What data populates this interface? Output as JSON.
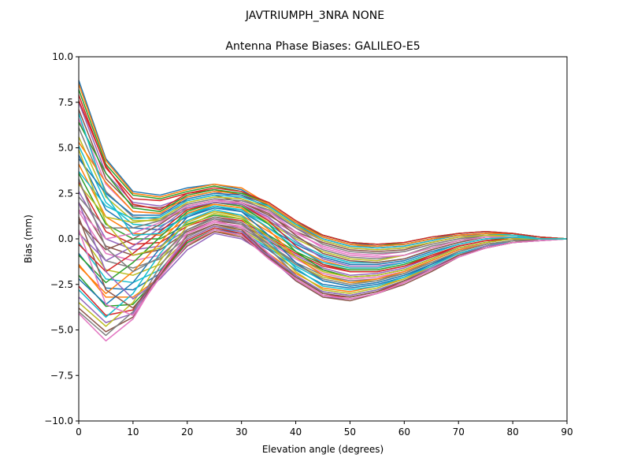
{
  "chart_data": {
    "type": "line",
    "suptitle": "JAVTRIUMPH_3NRA NONE",
    "title": "Antenna Phase Biases: GALILEO-E5",
    "xlabel": "Elevation angle (degrees)",
    "ylabel": "Bias (mm)",
    "xlim": [
      0,
      90
    ],
    "ylim": [
      -10,
      10
    ],
    "xticks": [
      0,
      10,
      20,
      30,
      40,
      50,
      60,
      70,
      80,
      90
    ],
    "xtick_labels": [
      "0",
      "10",
      "20",
      "30",
      "40",
      "50",
      "60",
      "70",
      "80",
      "90"
    ],
    "yticks": [
      -10,
      -7.5,
      -5,
      -2.5,
      0,
      2.5,
      5,
      7.5,
      10
    ],
    "ytick_labels": [
      "−10.0",
      "−7.5",
      "−5.0",
      "−2.5",
      "0.0",
      "2.5",
      "5.0",
      "7.5",
      "10.0"
    ],
    "grid": false,
    "legend": "none",
    "palette": [
      "#1f77b4",
      "#ff7f0e",
      "#2ca02c",
      "#d62728",
      "#9467bd",
      "#8c564b",
      "#e377c2",
      "#7f7f7f",
      "#bcbd22",
      "#17becf"
    ],
    "x": [
      0,
      5,
      10,
      15,
      20,
      25,
      30,
      35,
      40,
      45,
      50,
      55,
      60,
      65,
      70,
      75,
      80,
      85,
      90
    ],
    "series": [
      {
        "values": [
          8.7,
          4.4,
          2.6,
          2.4,
          2.8,
          3.0,
          2.7,
          1.8,
          0.9,
          0.2,
          -0.2,
          -0.4,
          -0.3,
          0.0,
          0.3,
          0.4,
          0.3,
          0.1,
          0.0
        ]
      },
      {
        "values": [
          8.5,
          4.3,
          2.5,
          2.3,
          2.7,
          3.0,
          2.8,
          1.9,
          0.8,
          0.1,
          -0.3,
          -0.5,
          -0.4,
          -0.1,
          0.2,
          0.3,
          0.3,
          0.1,
          0.0
        ]
      },
      {
        "values": [
          8.2,
          4.1,
          2.4,
          2.2,
          2.6,
          2.9,
          2.6,
          1.8,
          0.8,
          0.2,
          -0.2,
          -0.3,
          -0.3,
          0.0,
          0.2,
          0.3,
          0.2,
          0.1,
          0.0
        ]
      },
      {
        "values": [
          7.9,
          3.9,
          2.2,
          2.1,
          2.5,
          2.7,
          2.4,
          1.7,
          0.7,
          0.0,
          -0.4,
          -0.5,
          -0.4,
          -0.1,
          0.2,
          0.3,
          0.2,
          0.1,
          0.0
        ]
      },
      {
        "values": [
          7.5,
          3.6,
          2.0,
          1.8,
          2.3,
          2.6,
          2.2,
          1.5,
          0.6,
          -0.1,
          -0.5,
          -0.6,
          -0.5,
          -0.2,
          0.1,
          0.3,
          0.2,
          0.1,
          0.0
        ]
      },
      {
        "values": [
          7.1,
          3.3,
          1.8,
          1.7,
          2.1,
          2.4,
          2.0,
          1.3,
          0.4,
          -0.2,
          -0.6,
          -0.7,
          -0.6,
          -0.2,
          0.1,
          0.2,
          0.2,
          0.1,
          0.0
        ]
      },
      {
        "values": [
          6.6,
          3.0,
          1.5,
          1.4,
          1.9,
          2.2,
          1.9,
          1.1,
          0.3,
          -0.4,
          -0.8,
          -0.9,
          -0.7,
          -0.3,
          0.0,
          0.2,
          0.2,
          0.1,
          0.0
        ]
      },
      {
        "values": [
          6.1,
          2.6,
          1.2,
          1.1,
          1.7,
          2.0,
          1.8,
          1.0,
          0.1,
          -0.6,
          -1.0,
          -1.1,
          -0.9,
          -0.4,
          -0.1,
          0.2,
          0.2,
          0.1,
          0.0
        ]
      },
      {
        "values": [
          5.6,
          2.3,
          1.0,
          1.0,
          1.6,
          1.9,
          1.7,
          0.9,
          0.0,
          -0.7,
          -1.1,
          -1.2,
          -0.9,
          -0.5,
          -0.1,
          0.1,
          0.2,
          0.1,
          0.0
        ]
      },
      {
        "values": [
          5.1,
          2.0,
          0.8,
          0.7,
          1.4,
          1.8,
          1.6,
          0.8,
          -0.2,
          -0.9,
          -1.3,
          -1.3,
          -1.1,
          -0.6,
          -0.2,
          0.1,
          0.1,
          0.1,
          0.0
        ]
      },
      {
        "values": [
          4.6,
          1.6,
          0.6,
          0.5,
          1.2,
          1.7,
          1.5,
          0.6,
          -0.3,
          -1.0,
          -1.4,
          -1.4,
          -1.2,
          -0.7,
          -0.3,
          0.0,
          0.1,
          0.0,
          0.0
        ]
      },
      {
        "values": [
          4.1,
          1.2,
          0.3,
          0.2,
          1.0,
          1.5,
          1.3,
          0.4,
          -0.5,
          -1.2,
          -1.6,
          -1.6,
          -1.3,
          -0.8,
          -0.3,
          0.0,
          0.1,
          0.0,
          0.0
        ]
      },
      {
        "values": [
          3.6,
          0.8,
          0.0,
          0.0,
          0.8,
          1.3,
          1.1,
          0.2,
          -0.7,
          -1.4,
          -1.7,
          -1.7,
          -1.4,
          -0.9,
          -0.4,
          -0.1,
          0.1,
          0.0,
          0.0
        ]
      },
      {
        "values": [
          3.1,
          0.4,
          -0.3,
          -0.2,
          0.7,
          1.2,
          1.0,
          0.1,
          -0.8,
          -1.5,
          -1.8,
          -1.8,
          -1.5,
          -0.9,
          -0.4,
          -0.1,
          0.0,
          0.0,
          0.0
        ]
      },
      {
        "values": [
          2.6,
          0.0,
          -0.6,
          -0.4,
          0.5,
          1.1,
          0.9,
          0.0,
          -0.9,
          -1.6,
          -2.0,
          -1.9,
          -1.6,
          -1.0,
          -0.5,
          -0.2,
          0.0,
          0.0,
          0.0
        ]
      },
      {
        "values": [
          2.0,
          -0.4,
          -0.9,
          -0.6,
          0.4,
          1.0,
          0.8,
          -0.1,
          -1.0,
          -1.7,
          -2.1,
          -2.0,
          -1.7,
          -1.1,
          -0.5,
          -0.2,
          0.0,
          0.0,
          0.0
        ]
      },
      {
        "values": [
          1.5,
          -0.8,
          -1.2,
          -0.9,
          0.3,
          0.9,
          0.7,
          -0.2,
          -1.1,
          -1.9,
          -2.2,
          -2.1,
          -1.8,
          -1.2,
          -0.6,
          -0.2,
          0.0,
          0.0,
          0.0
        ]
      },
      {
        "values": [
          1.0,
          -1.2,
          -1.6,
          -1.1,
          0.1,
          0.8,
          0.6,
          -0.3,
          -1.3,
          -2.0,
          -2.3,
          -2.2,
          -1.9,
          -1.2,
          -0.6,
          -0.3,
          -0.1,
          0.0,
          0.0
        ]
      },
      {
        "values": [
          0.4,
          -1.7,
          -2.0,
          -1.4,
          0.0,
          0.7,
          0.5,
          -0.4,
          -1.4,
          -2.1,
          -2.4,
          -2.3,
          -1.9,
          -1.3,
          -0.7,
          -0.3,
          -0.1,
          0.0,
          0.0
        ]
      },
      {
        "values": [
          -0.2,
          -2.2,
          -2.4,
          -1.7,
          -0.1,
          0.6,
          0.4,
          -0.5,
          -1.5,
          -2.3,
          -2.6,
          -2.4,
          -2.0,
          -1.4,
          -0.7,
          -0.3,
          -0.1,
          0.0,
          0.0
        ]
      },
      {
        "values": [
          -0.8,
          -2.7,
          -2.8,
          -1.9,
          -0.2,
          0.5,
          0.3,
          -0.6,
          -1.7,
          -2.5,
          -2.7,
          -2.5,
          -2.1,
          -1.4,
          -0.8,
          -0.4,
          -0.1,
          0.0,
          0.0
        ]
      },
      {
        "values": [
          -1.4,
          -3.2,
          -3.2,
          -2.1,
          -0.3,
          0.4,
          0.2,
          -0.8,
          -1.9,
          -2.7,
          -2.9,
          -2.6,
          -2.2,
          -1.5,
          -0.8,
          -0.4,
          -0.1,
          0.0,
          0.0
        ]
      },
      {
        "values": [
          -2.0,
          -3.7,
          -3.6,
          -2.0,
          -0.2,
          0.5,
          0.2,
          -0.9,
          -2.1,
          -2.9,
          -3.1,
          -2.8,
          -2.3,
          -1.6,
          -0.9,
          -0.4,
          -0.2,
          0.0,
          0.0
        ]
      },
      {
        "values": [
          -2.6,
          -4.2,
          -3.9,
          -1.9,
          -0.1,
          0.6,
          0.3,
          -1.0,
          -2.2,
          -3.1,
          -3.2,
          -2.9,
          -2.4,
          -1.7,
          -0.9,
          -0.5,
          -0.2,
          0.0,
          0.0
        ]
      },
      {
        "values": [
          -3.2,
          -4.6,
          -4.1,
          -1.8,
          0.0,
          0.7,
          0.4,
          -1.0,
          -2.3,
          -3.2,
          -3.3,
          -3.0,
          -2.4,
          -1.7,
          -1.0,
          -0.5,
          -0.2,
          -0.1,
          0.0
        ]
      },
      {
        "values": [
          -3.8,
          -5.1,
          -4.3,
          -1.8,
          0.2,
          0.8,
          0.5,
          -0.9,
          -2.3,
          -3.2,
          -3.4,
          -3.0,
          -2.5,
          -1.8,
          -1.0,
          -0.5,
          -0.2,
          -0.1,
          0.0
        ]
      },
      {
        "values": [
          -4.1,
          -5.6,
          -4.4,
          -1.9,
          0.3,
          1.0,
          0.6,
          -0.8,
          -2.2,
          -3.1,
          -3.3,
          -3.0,
          -2.4,
          -1.7,
          -1.0,
          -0.5,
          -0.2,
          -0.1,
          0.0
        ]
      },
      {
        "values": [
          -4.0,
          -5.3,
          -4.0,
          -1.5,
          0.5,
          1.2,
          0.9,
          -0.5,
          -2.0,
          -3.0,
          -3.2,
          -2.9,
          -2.3,
          -1.7,
          -0.9,
          -0.5,
          -0.2,
          -0.1,
          0.0
        ]
      },
      {
        "values": [
          -3.5,
          -4.8,
          -3.5,
          -1.2,
          0.7,
          1.4,
          1.1,
          -0.3,
          -1.8,
          -2.8,
          -3.0,
          -2.7,
          -2.2,
          -1.6,
          -0.9,
          -0.4,
          -0.2,
          0.0,
          0.0
        ]
      },
      {
        "values": [
          -2.8,
          -4.3,
          -3.0,
          -0.8,
          1.0,
          1.6,
          1.3,
          -0.1,
          -1.6,
          -2.6,
          -2.8,
          -2.6,
          -2.1,
          -1.5,
          -0.8,
          -0.4,
          -0.1,
          0.0,
          0.0
        ]
      },
      {
        "values": [
          -2.2,
          -3.6,
          -2.4,
          -0.5,
          1.2,
          1.8,
          1.5,
          0.2,
          -1.3,
          -2.3,
          -2.6,
          -2.4,
          -2.0,
          -1.4,
          -0.7,
          -0.3,
          -0.1,
          0.0,
          0.0
        ]
      },
      {
        "values": [
          -1.5,
          -3.0,
          -1.8,
          -0.2,
          1.4,
          1.9,
          1.7,
          0.5,
          -1.0,
          -2.0,
          -2.4,
          -2.2,
          -1.8,
          -1.2,
          -0.6,
          -0.3,
          -0.1,
          0.0,
          0.0
        ]
      },
      {
        "values": [
          -0.9,
          -2.4,
          -1.3,
          0.1,
          1.5,
          2.0,
          1.8,
          0.8,
          -0.7,
          -1.7,
          -2.1,
          -2.0,
          -1.7,
          -1.1,
          -0.5,
          -0.2,
          0.0,
          0.0,
          0.0
        ]
      },
      {
        "values": [
          -0.3,
          -1.8,
          -0.8,
          0.4,
          1.6,
          2.0,
          1.9,
          1.0,
          -0.4,
          -1.4,
          -1.8,
          -1.8,
          -1.5,
          -1.0,
          -0.4,
          -0.1,
          0.0,
          0.0,
          0.0
        ]
      },
      {
        "values": [
          0.3,
          -1.2,
          -0.4,
          0.6,
          1.7,
          2.0,
          1.9,
          1.2,
          -0.1,
          -1.1,
          -1.5,
          -1.5,
          -1.3,
          -0.8,
          -0.3,
          0.0,
          0.1,
          0.0,
          0.0
        ]
      },
      {
        "values": [
          0.9,
          -0.6,
          0.0,
          0.8,
          1.8,
          2.1,
          2.0,
          1.4,
          0.2,
          -0.8,
          -1.2,
          -1.3,
          -1.1,
          -0.6,
          -0.2,
          0.1,
          0.1,
          0.0,
          0.0
        ]
      },
      {
        "values": [
          1.6,
          0.0,
          0.3,
          0.9,
          1.8,
          2.1,
          2.0,
          1.5,
          0.4,
          -0.5,
          -0.9,
          -1.0,
          -0.9,
          -0.5,
          -0.1,
          0.1,
          0.1,
          0.0,
          0.0
        ]
      },
      {
        "values": [
          2.3,
          0.6,
          0.6,
          1.0,
          1.9,
          2.2,
          2.1,
          1.6,
          0.6,
          -0.3,
          -0.7,
          -0.8,
          -0.7,
          -0.3,
          0.0,
          0.2,
          0.2,
          0.1,
          0.0
        ]
      },
      {
        "values": [
          3.0,
          1.2,
          0.9,
          1.1,
          2.0,
          2.3,
          2.2,
          1.7,
          0.7,
          -0.1,
          -0.5,
          -0.6,
          -0.5,
          -0.2,
          0.1,
          0.2,
          0.2,
          0.1,
          0.0
        ]
      },
      {
        "values": [
          3.7,
          1.8,
          1.1,
          1.2,
          2.1,
          2.4,
          2.3,
          1.8,
          0.8,
          0.0,
          -0.4,
          -0.5,
          -0.4,
          -0.1,
          0.2,
          0.3,
          0.2,
          0.1,
          0.0
        ]
      },
      {
        "values": [
          4.4,
          2.5,
          1.3,
          1.3,
          2.2,
          2.5,
          2.4,
          1.9,
          0.9,
          0.1,
          -0.3,
          -0.4,
          -0.3,
          0.0,
          0.2,
          0.3,
          0.3,
          0.1,
          0.0
        ]
      },
      {
        "values": [
          5.3,
          3.1,
          1.5,
          1.4,
          2.3,
          2.6,
          2.5,
          1.9,
          0.9,
          0.1,
          -0.3,
          -0.4,
          -0.3,
          0.0,
          0.2,
          0.3,
          0.3,
          0.1,
          0.0
        ]
      },
      {
        "values": [
          6.4,
          3.6,
          1.7,
          1.5,
          2.4,
          2.7,
          2.5,
          2.0,
          1.0,
          0.2,
          -0.2,
          -0.3,
          -0.2,
          0.1,
          0.3,
          0.4,
          0.3,
          0.1,
          0.0
        ]
      },
      {
        "values": [
          7.6,
          4.0,
          1.9,
          1.6,
          2.5,
          2.8,
          2.6,
          2.0,
          1.0,
          0.2,
          -0.2,
          -0.3,
          -0.2,
          0.1,
          0.3,
          0.4,
          0.3,
          0.1,
          0.0
        ]
      },
      {
        "values": [
          2.0,
          -1.8,
          -3.3,
          -2.2,
          -0.6,
          0.3,
          0.0,
          -0.9,
          -2.0,
          -2.9,
          -3.1,
          -2.8,
          -2.3,
          -1.6,
          -0.9,
          -0.4,
          -0.2,
          0.0,
          0.0
        ]
      },
      {
        "values": [
          1.2,
          -2.8,
          -3.8,
          -2.0,
          -0.4,
          0.4,
          0.1,
          -1.0,
          -2.1,
          -3.0,
          -3.2,
          -2.9,
          -2.3,
          -1.7,
          -0.9,
          -0.5,
          -0.2,
          0.0,
          0.0
        ]
      },
      {
        "values": [
          0.5,
          -3.6,
          -4.2,
          -2.1,
          -0.3,
          0.5,
          0.2,
          -1.1,
          -2.2,
          -3.1,
          -3.3,
          -3.0,
          -2.4,
          -1.7,
          -1.0,
          -0.5,
          -0.2,
          -0.1,
          0.0
        ]
      },
      {
        "values": [
          3.3,
          -0.5,
          -1.8,
          -1.0,
          0.5,
          1.1,
          0.8,
          -0.3,
          -1.4,
          -2.2,
          -2.5,
          -2.3,
          -1.9,
          -1.3,
          -0.7,
          -0.3,
          -0.1,
          0.0,
          0.0
        ]
      },
      {
        "values": [
          4.9,
          0.9,
          -0.9,
          -0.5,
          0.9,
          1.5,
          1.2,
          0.1,
          -1.0,
          -1.8,
          -2.1,
          -2.0,
          -1.7,
          -1.1,
          -0.5,
          -0.2,
          0.0,
          0.0,
          0.0
        ]
      },
      {
        "values": [
          6.9,
          2.4,
          0.2,
          0.3,
          1.3,
          1.8,
          1.6,
          0.6,
          -0.5,
          -1.3,
          -1.6,
          -1.6,
          -1.3,
          -0.8,
          -0.3,
          0.0,
          0.1,
          0.0,
          0.0
        ]
      }
    ]
  }
}
